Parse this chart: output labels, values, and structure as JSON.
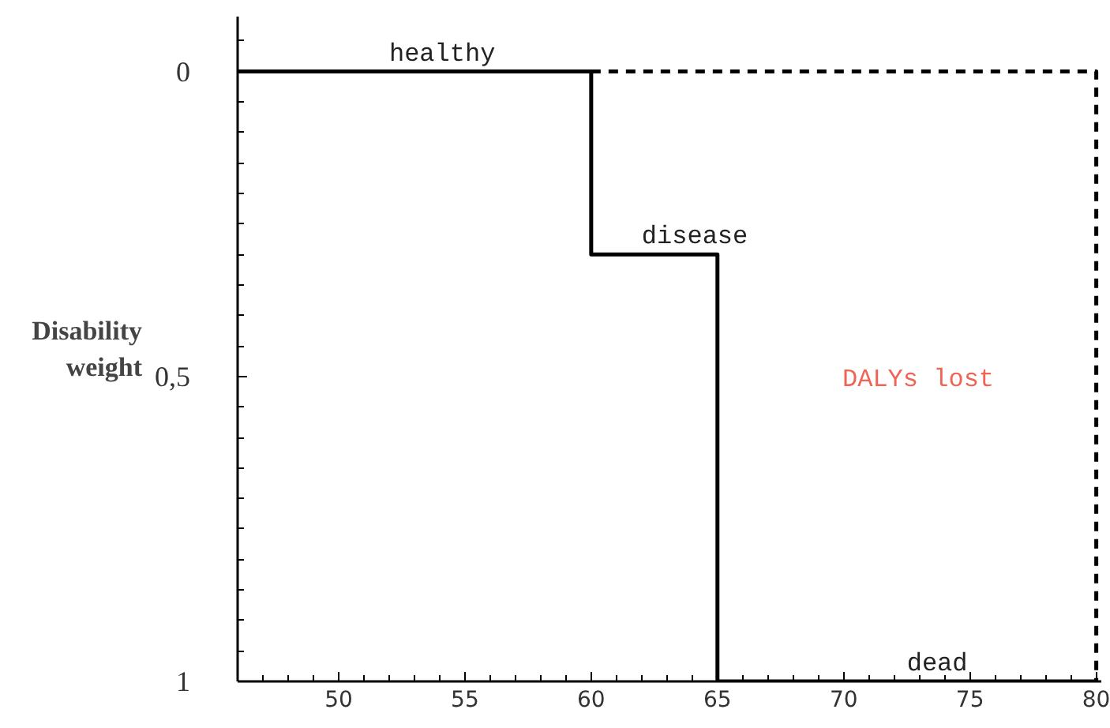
{
  "chart_data": {
    "type": "step",
    "ylabel": "Disability\nweight",
    "xlim": [
      46,
      80.2
    ],
    "ylim": [
      1,
      -0.09
    ],
    "xticks": [
      50,
      55,
      60,
      65,
      70,
      75,
      80,
      {
        "value": 47,
        "label": null
      },
      {
        "value": 48,
        "label": null
      },
      {
        "value": 49,
        "label": null
      },
      {
        "value": 51,
        "label": null
      },
      {
        "value": 52,
        "label": null
      },
      {
        "value": 53,
        "label": null
      },
      {
        "value": 54,
        "label": null
      },
      {
        "value": 56,
        "label": null
      },
      {
        "value": 57,
        "label": null
      },
      {
        "value": 58,
        "label": null
      },
      {
        "value": 59,
        "label": null
      },
      {
        "value": 61,
        "label": null
      },
      {
        "value": 62,
        "label": null
      },
      {
        "value": 63,
        "label": null
      },
      {
        "value": 64,
        "label": null
      },
      {
        "value": 66,
        "label": null
      },
      {
        "value": 67,
        "label": null
      },
      {
        "value": 68,
        "label": null
      },
      {
        "value": 69,
        "label": null
      },
      {
        "value": 71,
        "label": null
      },
      {
        "value": 72,
        "label": null
      },
      {
        "value": 73,
        "label": null
      },
      {
        "value": 74,
        "label": null
      },
      {
        "value": 76,
        "label": null
      },
      {
        "value": 77,
        "label": null
      },
      {
        "value": 78,
        "label": null
      },
      {
        "value": 79,
        "label": null
      }
    ],
    "yticks": [
      0,
      {
        "value": 0.5,
        "label": "0,5"
      },
      1,
      {
        "value": -0.05,
        "label": null
      },
      {
        "value": 0.05,
        "label": null
      },
      {
        "value": 0.1,
        "label": null
      },
      {
        "value": 0.15,
        "label": null
      },
      {
        "value": 0.2,
        "label": null
      },
      {
        "value": 0.25,
        "label": null
      },
      {
        "value": 0.3,
        "label": null
      },
      {
        "value": 0.35,
        "label": null
      },
      {
        "value": 0.4,
        "label": null
      },
      {
        "value": 0.45,
        "label": null
      },
      {
        "value": 0.55,
        "label": null
      },
      {
        "value": 0.6,
        "label": null
      },
      {
        "value": 0.65,
        "label": null
      },
      {
        "value": 0.7,
        "label": null
      },
      {
        "value": 0.75,
        "label": null
      },
      {
        "value": 0.8,
        "label": null
      },
      {
        "value": 0.85,
        "label": null
      },
      {
        "value": 0.9,
        "label": null
      },
      {
        "value": 0.95,
        "label": null
      }
    ],
    "series": [
      {
        "color": "#000000",
        "x": [
          46,
          60,
          65,
          80
        ],
        "values": [
          0,
          0.3,
          1,
          1
        ],
        "line_style": "solid"
      },
      {
        "type": "line",
        "color": "#000000",
        "x": [
          60,
          80,
          80
        ],
        "values": [
          0,
          0,
          1
        ],
        "line_style": "dashed"
      }
    ],
    "annotations": [
      {
        "text": "healthy",
        "x": 52,
        "y": 0
      },
      {
        "text": "disease",
        "x": 62,
        "y": 0.3
      },
      {
        "text": "dead",
        "x": 72.5,
        "y": 1
      },
      "DALYs lost"
    ],
    "grid": false
  }
}
